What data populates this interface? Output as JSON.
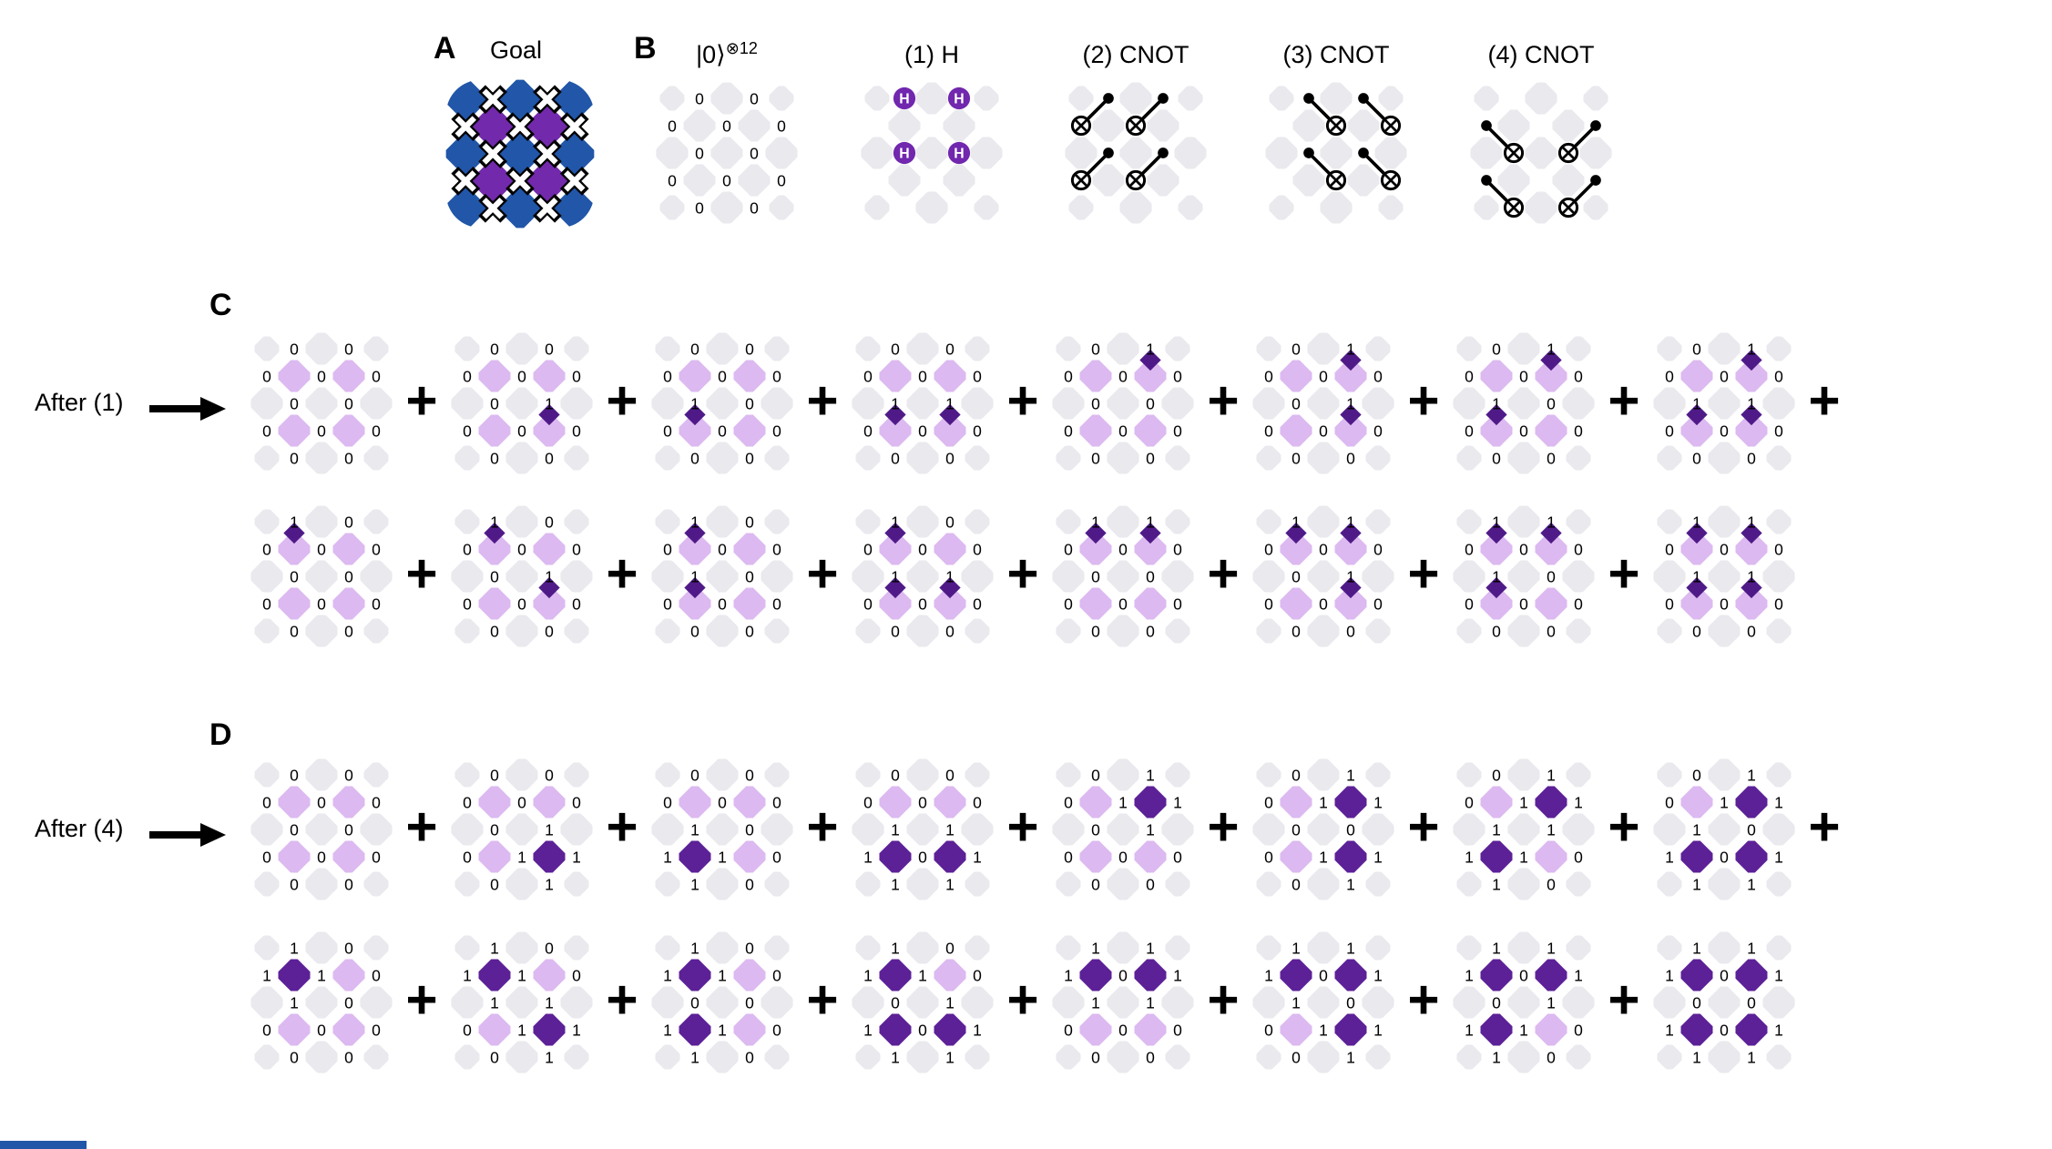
{
  "colors": {
    "lattice_gray": "#e9e9ee",
    "light_purple": "#dcb9f0",
    "dark_purple": "#5c2097",
    "mark_purple": "#4f1a88",
    "gate_purple": "#7127ae",
    "goal_blue": "#2156a8",
    "goal_purple": "#7229ab",
    "text": "#000000",
    "footer_blue": "#2156a8"
  },
  "plus_sign": "+",
  "panel_a": {
    "label": "A",
    "title": "Goal"
  },
  "panel_b": {
    "label": "B",
    "steps": [
      {
        "title": "|0⟩",
        "title_sup": "⊗12",
        "show": "zeros"
      },
      {
        "title": "(1) H",
        "title_sup": "",
        "show": "h"
      },
      {
        "title": "(2) CNOT",
        "title_sup": "",
        "show": "cnot2"
      },
      {
        "title": "(3) CNOT",
        "title_sup": "",
        "show": "cnot3"
      },
      {
        "title": "(4) CNOT",
        "title_sup": "",
        "show": "cnot4"
      }
    ]
  },
  "gates": {
    "h": [
      0,
      1,
      5,
      6
    ],
    "cnot2": [
      [
        0,
        2
      ],
      [
        1,
        3
      ],
      [
        5,
        7
      ],
      [
        6,
        8
      ]
    ],
    "cnot3": [
      [
        0,
        3
      ],
      [
        1,
        4
      ],
      [
        5,
        8
      ],
      [
        6,
        9
      ]
    ],
    "cnot4": [
      [
        2,
        5
      ],
      [
        4,
        6
      ],
      [
        7,
        10
      ],
      [
        9,
        11
      ]
    ]
  },
  "section_c": {
    "label": "C",
    "caption": "After (1)",
    "rows": [
      [
        {
          "bits": [
            0,
            0,
            0,
            0,
            0,
            0,
            0,
            0,
            0,
            0,
            0,
            0
          ]
        },
        {
          "bits": [
            0,
            0,
            0,
            0,
            0,
            0,
            1,
            0,
            0,
            0,
            0,
            0
          ]
        },
        {
          "bits": [
            0,
            0,
            0,
            0,
            0,
            1,
            0,
            0,
            0,
            0,
            0,
            0
          ]
        },
        {
          "bits": [
            0,
            0,
            0,
            0,
            0,
            1,
            1,
            0,
            0,
            0,
            0,
            0
          ]
        },
        {
          "bits": [
            0,
            1,
            0,
            0,
            0,
            0,
            0,
            0,
            0,
            0,
            0,
            0
          ]
        },
        {
          "bits": [
            0,
            1,
            0,
            0,
            0,
            0,
            1,
            0,
            0,
            0,
            0,
            0
          ]
        },
        {
          "bits": [
            0,
            1,
            0,
            0,
            0,
            1,
            0,
            0,
            0,
            0,
            0,
            0
          ]
        },
        {
          "bits": [
            0,
            1,
            0,
            0,
            0,
            1,
            1,
            0,
            0,
            0,
            0,
            0
          ]
        }
      ],
      [
        {
          "bits": [
            1,
            0,
            0,
            0,
            0,
            0,
            0,
            0,
            0,
            0,
            0,
            0
          ]
        },
        {
          "bits": [
            1,
            0,
            0,
            0,
            0,
            0,
            1,
            0,
            0,
            0,
            0,
            0
          ]
        },
        {
          "bits": [
            1,
            0,
            0,
            0,
            0,
            1,
            0,
            0,
            0,
            0,
            0,
            0
          ]
        },
        {
          "bits": [
            1,
            0,
            0,
            0,
            0,
            1,
            1,
            0,
            0,
            0,
            0,
            0
          ]
        },
        {
          "bits": [
            1,
            1,
            0,
            0,
            0,
            0,
            0,
            0,
            0,
            0,
            0,
            0
          ]
        },
        {
          "bits": [
            1,
            1,
            0,
            0,
            0,
            0,
            1,
            0,
            0,
            0,
            0,
            0
          ]
        },
        {
          "bits": [
            1,
            1,
            0,
            0,
            0,
            1,
            0,
            0,
            0,
            0,
            0,
            0
          ]
        },
        {
          "bits": [
            1,
            1,
            0,
            0,
            0,
            1,
            1,
            0,
            0,
            0,
            0,
            0
          ]
        }
      ]
    ],
    "trailing_plus_rows": [
      0
    ]
  },
  "section_d": {
    "label": "D",
    "caption": "After (4)",
    "rows": [
      [
        {
          "bits": [
            0,
            0,
            0,
            0,
            0,
            0,
            0,
            0,
            0,
            0,
            0,
            0
          ],
          "dark": [
            0,
            0,
            0,
            0
          ]
        },
        {
          "bits": [
            0,
            0,
            0,
            0,
            0,
            0,
            1,
            0,
            1,
            1,
            0,
            1
          ],
          "dark": [
            0,
            0,
            0,
            1
          ]
        },
        {
          "bits": [
            0,
            0,
            0,
            0,
            0,
            1,
            0,
            1,
            1,
            0,
            1,
            0
          ],
          "dark": [
            0,
            0,
            1,
            0
          ]
        },
        {
          "bits": [
            0,
            0,
            0,
            0,
            0,
            1,
            1,
            1,
            0,
            1,
            1,
            1
          ],
          "dark": [
            0,
            0,
            1,
            1
          ]
        },
        {
          "bits": [
            0,
            1,
            0,
            1,
            1,
            0,
            1,
            0,
            0,
            0,
            0,
            0
          ],
          "dark": [
            0,
            1,
            0,
            0
          ]
        },
        {
          "bits": [
            0,
            1,
            0,
            1,
            1,
            0,
            0,
            0,
            1,
            1,
            0,
            1
          ],
          "dark": [
            0,
            1,
            0,
            1
          ]
        },
        {
          "bits": [
            0,
            1,
            0,
            1,
            1,
            1,
            1,
            1,
            1,
            0,
            1,
            0
          ],
          "dark": [
            0,
            1,
            1,
            0
          ]
        },
        {
          "bits": [
            0,
            1,
            0,
            1,
            1,
            1,
            0,
            1,
            0,
            1,
            1,
            1
          ],
          "dark": [
            0,
            1,
            1,
            1
          ]
        }
      ],
      [
        {
          "bits": [
            1,
            0,
            1,
            1,
            0,
            1,
            0,
            0,
            0,
            0,
            0,
            0
          ],
          "dark": [
            1,
            0,
            0,
            0
          ]
        },
        {
          "bits": [
            1,
            0,
            1,
            1,
            0,
            1,
            1,
            0,
            1,
            1,
            0,
            1
          ],
          "dark": [
            1,
            0,
            0,
            1
          ]
        },
        {
          "bits": [
            1,
            0,
            1,
            1,
            0,
            0,
            0,
            1,
            1,
            0,
            1,
            0
          ],
          "dark": [
            1,
            0,
            1,
            0
          ]
        },
        {
          "bits": [
            1,
            0,
            1,
            1,
            0,
            0,
            1,
            1,
            0,
            1,
            1,
            1
          ],
          "dark": [
            1,
            0,
            1,
            1
          ]
        },
        {
          "bits": [
            1,
            1,
            1,
            0,
            1,
            1,
            1,
            0,
            0,
            0,
            0,
            0
          ],
          "dark": [
            1,
            1,
            0,
            0
          ]
        },
        {
          "bits": [
            1,
            1,
            1,
            0,
            1,
            1,
            0,
            0,
            1,
            1,
            0,
            1
          ],
          "dark": [
            1,
            1,
            0,
            1
          ]
        },
        {
          "bits": [
            1,
            1,
            1,
            0,
            1,
            0,
            1,
            1,
            1,
            0,
            1,
            0
          ],
          "dark": [
            1,
            1,
            1,
            0
          ]
        },
        {
          "bits": [
            1,
            1,
            1,
            0,
            1,
            0,
            0,
            1,
            0,
            1,
            1,
            1
          ],
          "dark": [
            1,
            1,
            1,
            1
          ]
        }
      ]
    ],
    "trailing_plus_rows": [
      0
    ]
  }
}
